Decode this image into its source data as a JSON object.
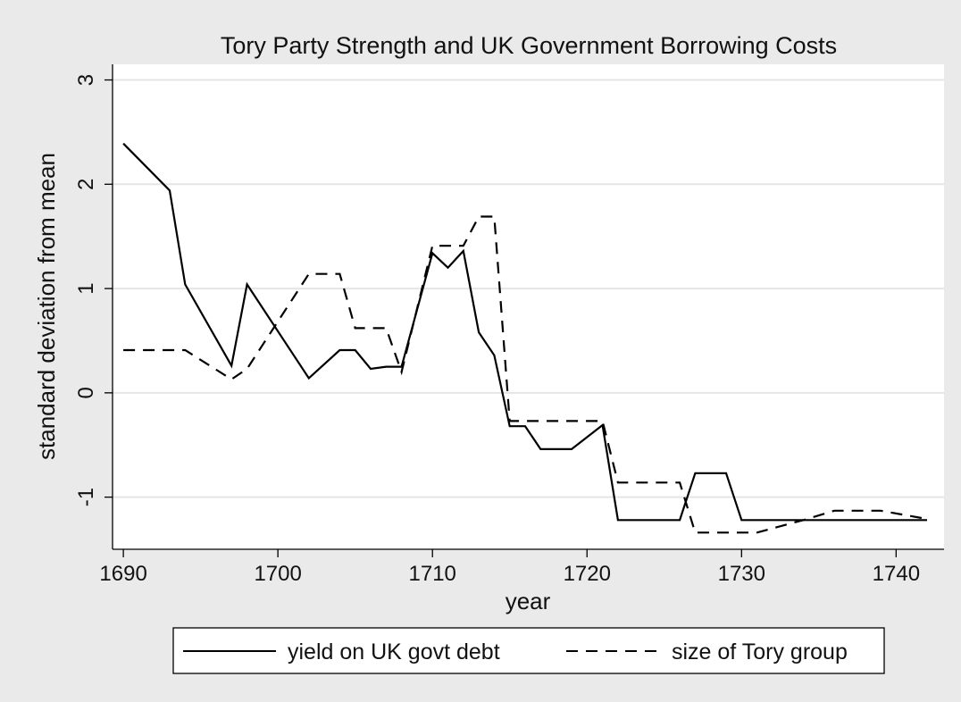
{
  "chart_data": {
    "type": "line",
    "title": "Tory Party Strength and UK Government Borrowing Costs",
    "xlabel": "year",
    "ylabel": "standard deviation from mean",
    "xlim": [
      1689.3,
      1743.1
    ],
    "ylim": [
      -1.5,
      3.15
    ],
    "xticks": [
      1690,
      1700,
      1710,
      1720,
      1730,
      1740
    ],
    "yticks": [
      -1,
      0,
      1,
      2,
      3
    ],
    "grid": "horizontal",
    "legend_position": "bottom",
    "series": [
      {
        "name": "yield on UK govt debt",
        "style": "solid",
        "color": "#000000",
        "x": [
          1690,
          1693,
          1694,
          1697,
          1698,
          1702,
          1704,
          1705,
          1706,
          1707,
          1708,
          1710,
          1711,
          1712,
          1713,
          1714,
          1715,
          1716,
          1717,
          1719,
          1721,
          1722,
          1724,
          1726,
          1727,
          1729,
          1730,
          1742
        ],
        "y": [
          2.39,
          1.94,
          1.04,
          0.26,
          1.04,
          0.14,
          0.41,
          0.41,
          0.23,
          0.25,
          0.25,
          1.34,
          1.2,
          1.36,
          0.58,
          0.36,
          -0.32,
          -0.32,
          -0.54,
          -0.54,
          -0.31,
          -1.22,
          -1.22,
          -1.22,
          -0.77,
          -0.77,
          -1.22,
          -1.22
        ]
      },
      {
        "name": "size of Tory group",
        "style": "dashed",
        "color": "#000000",
        "x": [
          1690,
          1693,
          1694,
          1697,
          1698,
          1702,
          1704,
          1705,
          1707,
          1708,
          1710,
          1712,
          1713,
          1714,
          1715,
          1721,
          1722,
          1726,
          1727,
          1731,
          1734,
          1736,
          1739,
          1742
        ],
        "y": [
          0.41,
          0.41,
          0.41,
          0.13,
          0.23,
          1.14,
          1.14,
          0.62,
          0.62,
          0.2,
          1.41,
          1.41,
          1.69,
          1.69,
          -0.27,
          -0.27,
          -0.86,
          -0.86,
          -1.34,
          -1.34,
          -1.22,
          -1.13,
          -1.13,
          -1.21
        ]
      }
    ]
  }
}
